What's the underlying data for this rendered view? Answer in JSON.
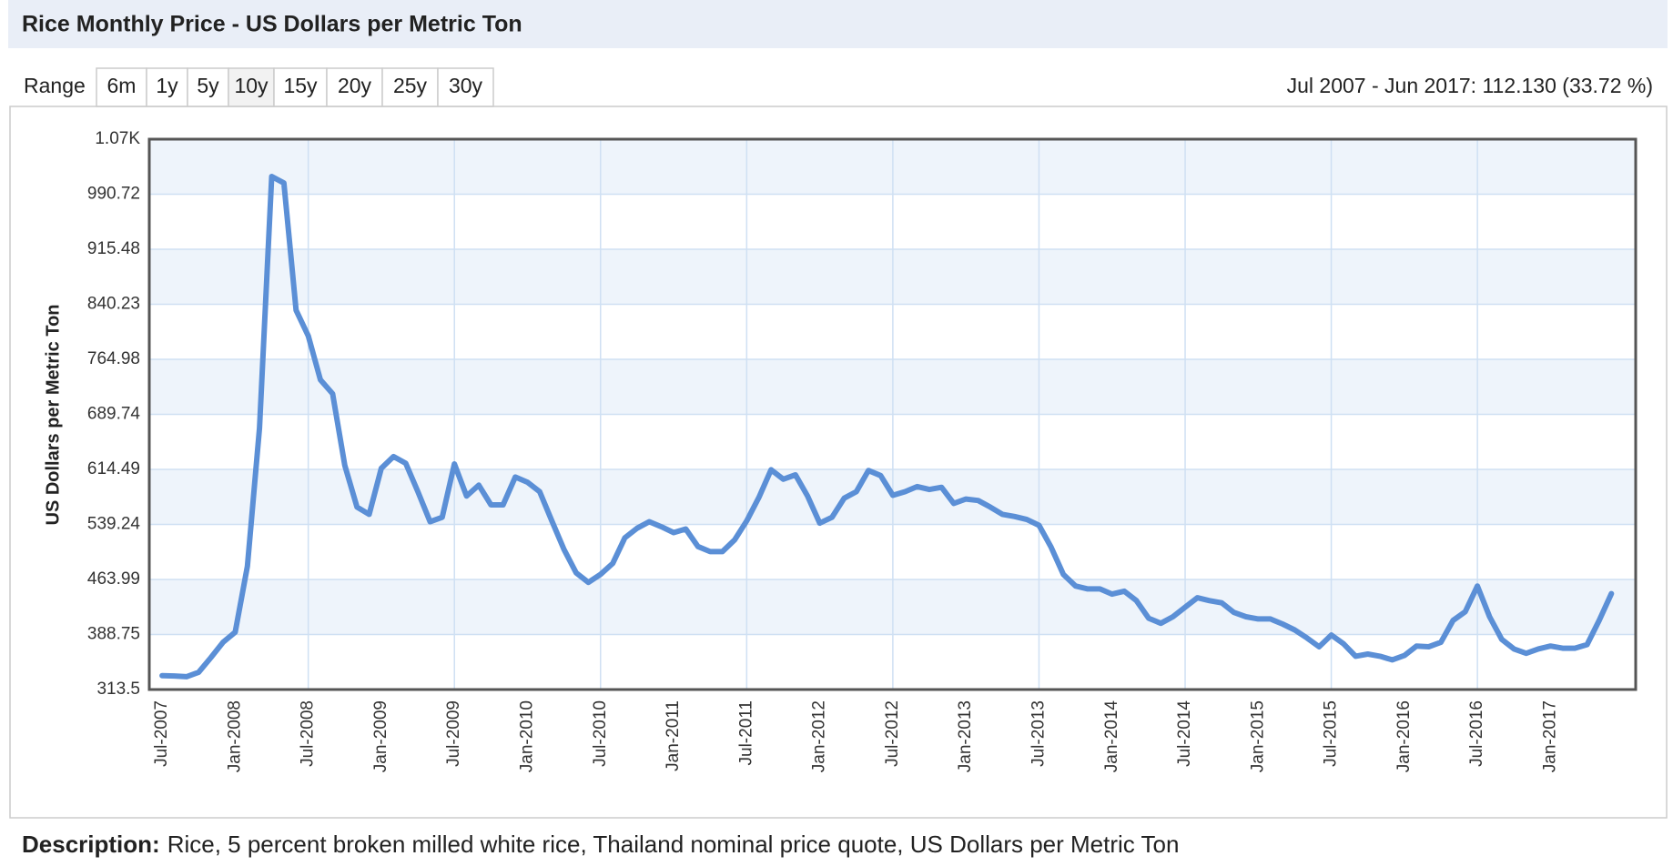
{
  "header": {
    "title": "Rice Monthly Price - US Dollars per Metric Ton"
  },
  "range": {
    "label": "Range",
    "buttons": [
      "6m",
      "1y",
      "5y",
      "10y",
      "15y",
      "20y",
      "25y",
      "30y"
    ],
    "active": "10y",
    "summary": "Jul 2007 - Jun 2017: 112.130 (33.72 %)"
  },
  "description": {
    "label": "Description:",
    "text": "Rice, 5 percent broken milled white rice, Thailand nominal price quote, US Dollars per Metric Ton"
  },
  "chart_data": {
    "type": "line",
    "y_label": "US Dollars per Metric Ton",
    "categories": [
      "Jul-2007",
      null,
      null,
      null,
      null,
      null,
      "Jan-2008",
      null,
      null,
      null,
      null,
      null,
      "Jul-2008",
      null,
      null,
      null,
      null,
      null,
      "Jan-2009",
      null,
      null,
      null,
      null,
      null,
      "Jul-2009",
      null,
      null,
      null,
      null,
      null,
      "Jan-2010",
      null,
      null,
      null,
      null,
      null,
      "Jul-2010",
      null,
      null,
      null,
      null,
      null,
      "Jan-2011",
      null,
      null,
      null,
      null,
      null,
      "Jul-2011",
      null,
      null,
      null,
      null,
      null,
      "Jan-2012",
      null,
      null,
      null,
      null,
      null,
      "Jul-2012",
      null,
      null,
      null,
      null,
      null,
      "Jan-2013",
      null,
      null,
      null,
      null,
      null,
      "Jul-2013",
      null,
      null,
      null,
      null,
      null,
      "Jan-2014",
      null,
      null,
      null,
      null,
      null,
      "Jul-2014",
      null,
      null,
      null,
      null,
      null,
      "Jan-2015",
      null,
      null,
      null,
      null,
      null,
      "Jul-2015",
      null,
      null,
      null,
      null,
      null,
      "Jan-2016",
      null,
      null,
      null,
      null,
      null,
      "Jul-2016",
      null,
      null,
      null,
      null,
      null,
      "Jan-2017",
      null,
      null,
      null,
      null,
      null
    ],
    "series": [
      {
        "name": "Rice",
        "color": "#5b8fd6",
        "values": [
          332.5,
          332,
          331,
          337,
          357,
          378,
          392,
          482,
          671,
          1015,
          1006,
          832,
          797,
          737,
          718,
          620,
          563,
          553,
          616,
          632,
          623,
          584,
          543,
          549,
          622,
          578,
          593,
          566,
          566,
          604,
          597,
          584,
          544,
          505,
          473,
          460,
          471,
          486,
          521,
          534,
          543,
          536,
          528,
          533,
          509,
          502,
          502,
          518,
          544,
          576,
          614,
          601,
          607,
          578,
          541,
          549,
          575,
          584,
          613,
          606,
          579,
          584,
          591,
          587,
          590,
          568,
          574,
          572,
          563,
          553,
          550,
          546,
          538,
          508,
          471,
          455,
          451,
          451,
          444,
          448,
          435,
          411,
          404,
          413,
          426,
          439,
          435,
          432,
          419,
          413,
          410,
          410,
          403,
          395,
          384,
          372,
          388,
          376,
          359,
          362,
          359,
          354,
          360,
          373,
          372,
          378,
          408,
          420,
          455,
          413,
          382,
          369,
          363,
          369,
          373,
          370,
          370,
          375,
          408,
          444.6
        ]
      }
    ],
    "ylim": [
      313.5,
      1065.97
    ],
    "yticks": [
      313.5,
      388.75,
      463.99,
      539.24,
      614.49,
      689.74,
      764.98,
      840.23,
      915.48,
      990.72,
      {
        "value": 1065.97,
        "label": "1.07K"
      }
    ],
    "grid": true,
    "band_colors": [
      "#eef4fb",
      "#ffffff"
    ],
    "grid_color": "#cfe0f3"
  }
}
